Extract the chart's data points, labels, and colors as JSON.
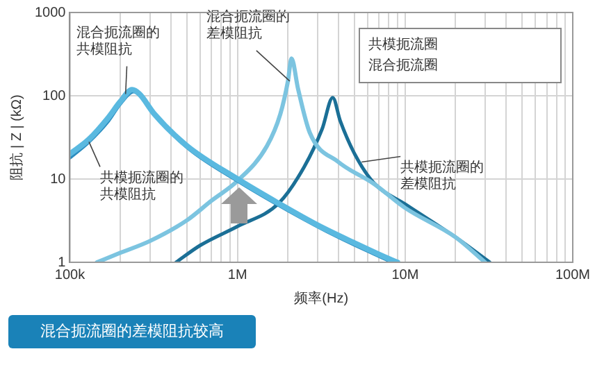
{
  "chart_data": {
    "type": "line",
    "xlabel": "频率(Hz)",
    "ylabel": "阻抗 | Z | (kΩ)",
    "log": "xy",
    "grid": true,
    "legend": false,
    "marker": "none",
    "line_style": "solid",
    "xlim": [
      100000,
      100000000
    ],
    "ylim": [
      1,
      1000
    ],
    "xticks": [
      {
        "value": 100000,
        "label": "100k"
      },
      {
        "value": 200000,
        "label": null
      },
      {
        "value": 300000,
        "label": null
      },
      {
        "value": 400000,
        "label": null
      },
      {
        "value": 500000,
        "label": null
      },
      {
        "value": 600000,
        "label": null
      },
      {
        "value": 700000,
        "label": null
      },
      {
        "value": 800000,
        "label": null
      },
      {
        "value": 900000,
        "label": null
      },
      {
        "value": 1000000,
        "label": "1M"
      },
      {
        "value": 2000000,
        "label": null
      },
      {
        "value": 3000000,
        "label": null
      },
      {
        "value": 4000000,
        "label": null
      },
      {
        "value": 5000000,
        "label": null
      },
      {
        "value": 6000000,
        "label": null
      },
      {
        "value": 7000000,
        "label": null
      },
      {
        "value": 8000000,
        "label": null
      },
      {
        "value": 9000000,
        "label": null
      },
      {
        "value": 10000000,
        "label": "10M"
      },
      {
        "value": 20000000,
        "label": null
      },
      {
        "value": 30000000,
        "label": null
      },
      {
        "value": 40000000,
        "label": null
      },
      {
        "value": 50000000,
        "label": null
      },
      {
        "value": 60000000,
        "label": null
      },
      {
        "value": 70000000,
        "label": null
      },
      {
        "value": 80000000,
        "label": null
      },
      {
        "value": 90000000,
        "label": null
      },
      {
        "value": 100000000,
        "label": "100M"
      }
    ],
    "yticks": [
      1,
      10,
      100,
      1000
    ],
    "series": [
      {
        "color": "#5ab9e0",
        "x": [
          100000,
          130000,
          170000,
          200000,
          235000,
          260000,
          320000,
          500000,
          1000000,
          1760000,
          3000000,
          5000000,
          8000000,
          9000000
        ],
        "values": [
          20,
          30,
          55,
          85,
          118,
          105,
          60,
          25,
          10,
          5.1,
          2.8,
          1.7,
          1.1,
          1
        ]
      },
      {
        "color": "#2b8cbf",
        "x": [
          100000,
          130000,
          170000,
          200000,
          240000,
          270000,
          320000,
          500000,
          1000000,
          2000000,
          4000000,
          8400000
        ],
        "values": [
          18,
          28,
          50,
          80,
          112,
          95,
          60,
          24,
          9.5,
          4.2,
          2,
          1
        ]
      },
      {
        "color": "#7cc4e0",
        "x": [
          145000,
          200000,
          300000,
          500000,
          700000,
          1000000,
          1500000,
          1800000,
          2000000,
          2100000,
          2300000,
          2700000,
          4000000,
          6500000,
          10000000,
          20000000,
          30000000
        ],
        "values": [
          1,
          1.3,
          1.8,
          3.2,
          5.5,
          9.5,
          25,
          60,
          150,
          280,
          120,
          36,
          16,
          8.8,
          4.5,
          2,
          1
        ]
      },
      {
        "color": "#1b6f96",
        "x": [
          430000,
          600000,
          1000000,
          1760000,
          2500000,
          3200000,
          3700000,
          4100000,
          5000000,
          6500000,
          10000000,
          20000000,
          32000000
        ],
        "values": [
          1,
          1.6,
          2.7,
          5.1,
          14,
          40,
          95,
          50,
          20,
          9,
          5,
          2,
          1
        ]
      }
    ],
    "annotations": [
      {
        "text": "混合扼流圈的共模阻抗",
        "x": 215000,
        "y": 105
      },
      {
        "text": "共模扼流圈的共模阻抗",
        "x": 130000,
        "y": 28
      },
      {
        "text": "混合扼流圈的差模阻抗",
        "x": 2050000,
        "y": 150
      },
      {
        "text": "共模扼流圈的差模阻抗",
        "x": 5500000,
        "y": 16
      },
      "共模扼流圈",
      "混合扼流圈",
      "混合扼流圈的差模阻抗较高"
    ]
  }
}
